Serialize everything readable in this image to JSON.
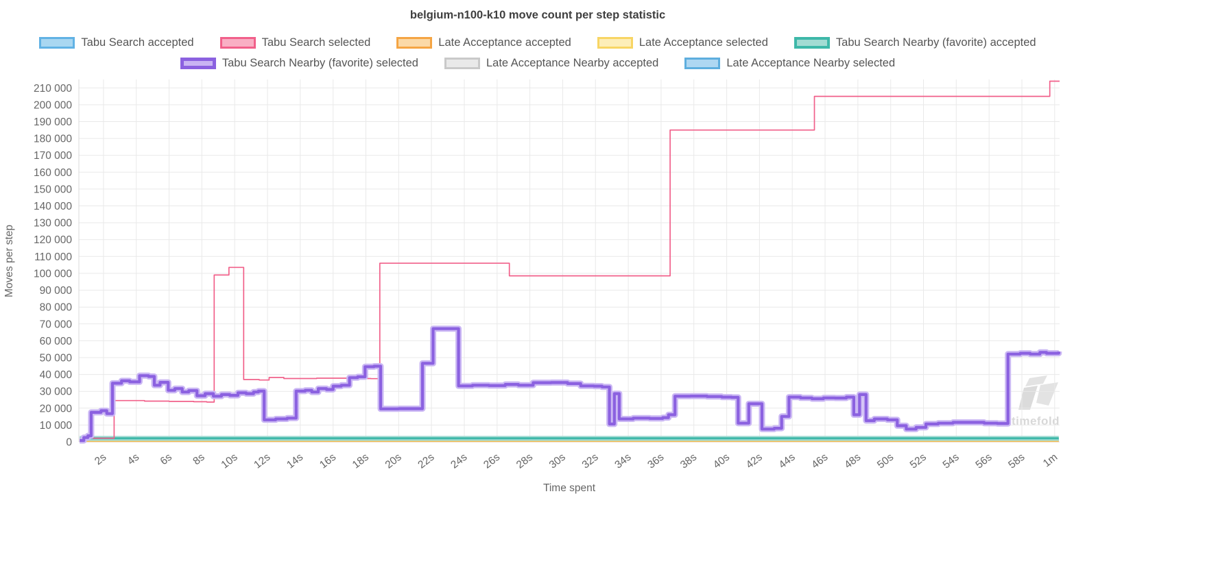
{
  "watermark": {
    "text": "timefold"
  },
  "chart_data": {
    "type": "line",
    "title": "belgium-n100-k10 move count per step statistic",
    "xlabel": "Time spent",
    "ylabel": "Moves per step",
    "grid": "on",
    "legend_position": "top",
    "colors": {
      "grid": "#e9e9e9",
      "axis_border": "#d9d9d9",
      "tick_text": "#666666"
    },
    "y_axis": {
      "min": 0,
      "max": 215000,
      "tick_step": 10000,
      "tick_max": 210000
    },
    "x_axis": {
      "min": 0.5,
      "max": 60.3,
      "ticks": [
        {
          "v": 2,
          "label": "2s"
        },
        {
          "v": 4,
          "label": "4s"
        },
        {
          "v": 6,
          "label": "6s"
        },
        {
          "v": 8,
          "label": "8s"
        },
        {
          "v": 10,
          "label": "10s"
        },
        {
          "v": 12,
          "label": "12s"
        },
        {
          "v": 14,
          "label": "14s"
        },
        {
          "v": 16,
          "label": "16s"
        },
        {
          "v": 18,
          "label": "18s"
        },
        {
          "v": 20,
          "label": "20s"
        },
        {
          "v": 22,
          "label": "22s"
        },
        {
          "v": 24,
          "label": "24s"
        },
        {
          "v": 26,
          "label": "26s"
        },
        {
          "v": 28,
          "label": "28s"
        },
        {
          "v": 30,
          "label": "30s"
        },
        {
          "v": 32,
          "label": "32s"
        },
        {
          "v": 34,
          "label": "34s"
        },
        {
          "v": 36,
          "label": "36s"
        },
        {
          "v": 38,
          "label": "38s"
        },
        {
          "v": 40,
          "label": "40s"
        },
        {
          "v": 42,
          "label": "42s"
        },
        {
          "v": 44,
          "label": "44s"
        },
        {
          "v": 46,
          "label": "46s"
        },
        {
          "v": 48,
          "label": "48s"
        },
        {
          "v": 50,
          "label": "50s"
        },
        {
          "v": 52,
          "label": "52s"
        },
        {
          "v": 54,
          "label": "54s"
        },
        {
          "v": 56,
          "label": "56s"
        },
        {
          "v": 58,
          "label": "58s"
        },
        {
          "v": 60,
          "label": "1m"
        }
      ]
    },
    "legend_rows": [
      [
        "Tabu Search accepted",
        "Tabu Search selected",
        "Late Acceptance accepted",
        "Late Acceptance selected",
        "Tabu Search Nearby (favorite) accepted"
      ],
      [
        "Tabu Search Nearby (favorite) selected",
        "Late Acceptance Nearby accepted",
        "Late Acceptance Nearby selected"
      ]
    ],
    "series": [
      {
        "name": "Late Acceptance accepted",
        "color": "#f5a544",
        "fill": "#fbd9a7",
        "width": 2,
        "legend_border": 3,
        "stepped": true,
        "points": [
          [
            0.55,
            350
          ],
          [
            60.25,
            350
          ]
        ]
      },
      {
        "name": "Late Acceptance selected",
        "color": "#f8d564",
        "fill": "#fdeeb8",
        "width": 2,
        "legend_border": 3,
        "stepped": true,
        "points": [
          [
            0.55,
            600
          ],
          [
            60.25,
            600
          ]
        ]
      },
      {
        "name": "Late Acceptance Nearby accepted",
        "color": "#c9c9c9",
        "fill": "#e9e9e9",
        "width": 2,
        "legend_border": 3,
        "stepped": true,
        "points": [
          [
            0.55,
            1000
          ],
          [
            60.25,
            1000
          ]
        ]
      },
      {
        "name": "Late Acceptance Nearby selected",
        "color": "#5eaede",
        "fill": "#aed7f2",
        "width": 3,
        "legend_border": 3,
        "stepped": true,
        "points": [
          [
            0.55,
            1300
          ],
          [
            60.25,
            1300
          ]
        ]
      },
      {
        "name": "Tabu Search accepted",
        "color": "#61b2e4",
        "fill": "#a9d7f1",
        "width": 3,
        "legend_border": 3,
        "stepped": true,
        "points": [
          [
            0.55,
            1550
          ],
          [
            60.25,
            1550
          ]
        ]
      },
      {
        "name": "Tabu Search Nearby (favorite) accepted",
        "color": "#3eb8a9",
        "fill": "#a2dcd3",
        "width": 3,
        "legend_border": 4,
        "stepped": true,
        "halo_color": "#a2dcd3",
        "halo_width": 7,
        "points": [
          [
            0.55,
            2100
          ],
          [
            60.25,
            2100
          ]
        ]
      },
      {
        "name": "Tabu Search selected",
        "color": "#f1608a",
        "fill": "#f9afc4",
        "width": 1.7,
        "legend_border": 3,
        "stepped": true,
        "points": [
          [
            0.55,
            1200
          ],
          [
            1.0,
            2200
          ],
          [
            2.65,
            24500
          ],
          [
            4.5,
            24200
          ],
          [
            6.0,
            24000
          ],
          [
            7.5,
            23800
          ],
          [
            8.3,
            23600
          ],
          [
            8.75,
            99000
          ],
          [
            9.65,
            103500
          ],
          [
            10.55,
            37000
          ],
          [
            11.5,
            36700
          ],
          [
            12.1,
            38200
          ],
          [
            13.0,
            37600
          ],
          [
            15.0,
            37800
          ],
          [
            17.0,
            37600
          ],
          [
            18.3,
            37500
          ],
          [
            18.85,
            106000
          ],
          [
            26.75,
            98500
          ],
          [
            36.55,
            185000
          ],
          [
            45.35,
            205000
          ],
          [
            59.7,
            214000
          ],
          [
            60.3,
            214000
          ]
        ]
      },
      {
        "name": "Tabu Search Nearby (favorite) selected",
        "color": "#8b61e0",
        "fill": "#c9b4f3",
        "width": 4.2,
        "legend_border": 5,
        "stepped": true,
        "halo_color": "#cbb8f4",
        "halo_width": 9,
        "points": [
          [
            0.55,
            800
          ],
          [
            0.8,
            2600
          ],
          [
            1.05,
            3600
          ],
          [
            1.25,
            17500
          ],
          [
            1.85,
            18500
          ],
          [
            2.2,
            16800
          ],
          [
            2.55,
            34800
          ],
          [
            3.1,
            36200
          ],
          [
            3.6,
            35600
          ],
          [
            4.2,
            39300
          ],
          [
            4.75,
            38800
          ],
          [
            5.1,
            33600
          ],
          [
            5.45,
            35300
          ],
          [
            5.95,
            30600
          ],
          [
            6.35,
            31600
          ],
          [
            6.8,
            29600
          ],
          [
            7.2,
            30400
          ],
          [
            7.7,
            27400
          ],
          [
            8.2,
            28600
          ],
          [
            8.7,
            27100
          ],
          [
            9.2,
            28100
          ],
          [
            9.7,
            27600
          ],
          [
            10.2,
            29100
          ],
          [
            10.7,
            28600
          ],
          [
            11.15,
            29600
          ],
          [
            11.45,
            30100
          ],
          [
            11.8,
            13100
          ],
          [
            12.5,
            13600
          ],
          [
            13.2,
            14100
          ],
          [
            13.75,
            30100
          ],
          [
            14.3,
            30600
          ],
          [
            14.7,
            29600
          ],
          [
            15.1,
            31600
          ],
          [
            15.6,
            31100
          ],
          [
            16.0,
            33100
          ],
          [
            16.5,
            33600
          ],
          [
            17.0,
            38100
          ],
          [
            17.5,
            38600
          ],
          [
            17.95,
            44600
          ],
          [
            18.5,
            44900
          ],
          [
            18.9,
            19600
          ],
          [
            20.0,
            19700
          ],
          [
            21.45,
            46600
          ],
          [
            22.1,
            67200
          ],
          [
            23.65,
            33200
          ],
          [
            24.5,
            33600
          ],
          [
            25.5,
            33400
          ],
          [
            26.5,
            34100
          ],
          [
            27.3,
            33600
          ],
          [
            28.2,
            35100
          ],
          [
            29.3,
            35200
          ],
          [
            30.3,
            34600
          ],
          [
            31.1,
            33200
          ],
          [
            31.9,
            33100
          ],
          [
            32.4,
            32600
          ],
          [
            32.85,
            10600
          ],
          [
            33.15,
            28600
          ],
          [
            33.45,
            13600
          ],
          [
            34.3,
            14100
          ],
          [
            35.3,
            13900
          ],
          [
            36.1,
            14400
          ],
          [
            36.45,
            16100
          ],
          [
            36.85,
            27100
          ],
          [
            37.8,
            27200
          ],
          [
            38.8,
            26900
          ],
          [
            39.7,
            26600
          ],
          [
            40.3,
            26400
          ],
          [
            40.7,
            11100
          ],
          [
            41.35,
            22600
          ],
          [
            42.15,
            7600
          ],
          [
            42.9,
            8100
          ],
          [
            43.35,
            15100
          ],
          [
            43.8,
            26600
          ],
          [
            44.5,
            26100
          ],
          [
            45.2,
            25600
          ],
          [
            45.9,
            26100
          ],
          [
            46.6,
            26000
          ],
          [
            47.3,
            26600
          ],
          [
            47.75,
            16100
          ],
          [
            48.1,
            28100
          ],
          [
            48.5,
            12600
          ],
          [
            49.0,
            13600
          ],
          [
            49.8,
            13100
          ],
          [
            50.4,
            9600
          ],
          [
            50.95,
            7600
          ],
          [
            51.55,
            8600
          ],
          [
            52.15,
            10600
          ],
          [
            52.9,
            11100
          ],
          [
            53.8,
            11600
          ],
          [
            54.8,
            11600
          ],
          [
            55.7,
            11100
          ],
          [
            56.5,
            10900
          ],
          [
            57.15,
            52100
          ],
          [
            57.9,
            52600
          ],
          [
            58.5,
            52100
          ],
          [
            59.1,
            53100
          ],
          [
            59.5,
            52600
          ],
          [
            60.25,
            53600
          ]
        ]
      }
    ]
  }
}
